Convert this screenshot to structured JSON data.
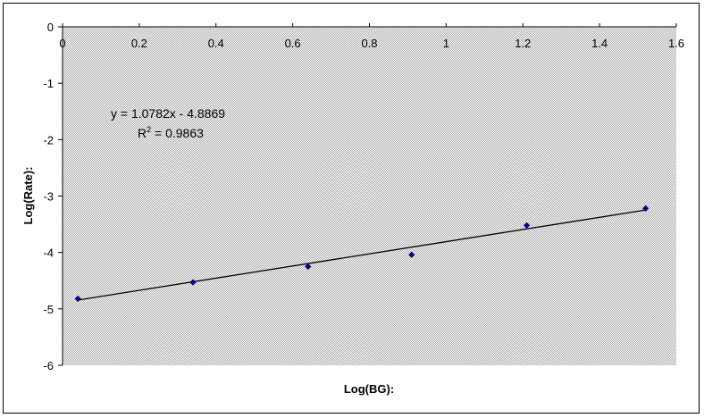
{
  "chart_data": {
    "type": "scatter",
    "title": "",
    "xlabel": "Log(BG):",
    "ylabel": "Log(Rate):",
    "xlim": [
      0,
      1.6
    ],
    "ylim": [
      -6,
      0
    ],
    "x_ticks": [
      0,
      0.2,
      0.4,
      0.6,
      0.8,
      1,
      1.2,
      1.4,
      1.6
    ],
    "y_ticks": [
      0,
      -1,
      -2,
      -3,
      -4,
      -5,
      -6
    ],
    "x_tick_labels": [
      "0",
      "0.2",
      "0.4",
      "0.6",
      "0.8",
      "1",
      "1.2",
      "1.4",
      "1.6"
    ],
    "y_tick_labels": [
      "0",
      "-1",
      "-2",
      "-3",
      "-4",
      "-5",
      "-6"
    ],
    "x_axis_position": "top",
    "grid": false,
    "plot_background": "#c0c0c0",
    "series": [
      {
        "x": [
          0.04,
          0.34,
          0.64,
          0.91,
          1.21,
          1.52
        ],
        "y": [
          -4.82,
          -4.53,
          -4.25,
          -4.04,
          -3.52,
          -3.22
        ],
        "color": "#000080",
        "marker": "diamond"
      }
    ],
    "trendline": {
      "slope": 1.0782,
      "intercept": -4.8869,
      "x_range": [
        0.04,
        1.52
      ],
      "color": "#000000"
    },
    "annotations": {
      "equation": "y = 1.0782x - 4.8869",
      "r2_prefix": "R",
      "r2_exp": "2",
      "r2_value": " = 0.9863"
    }
  }
}
